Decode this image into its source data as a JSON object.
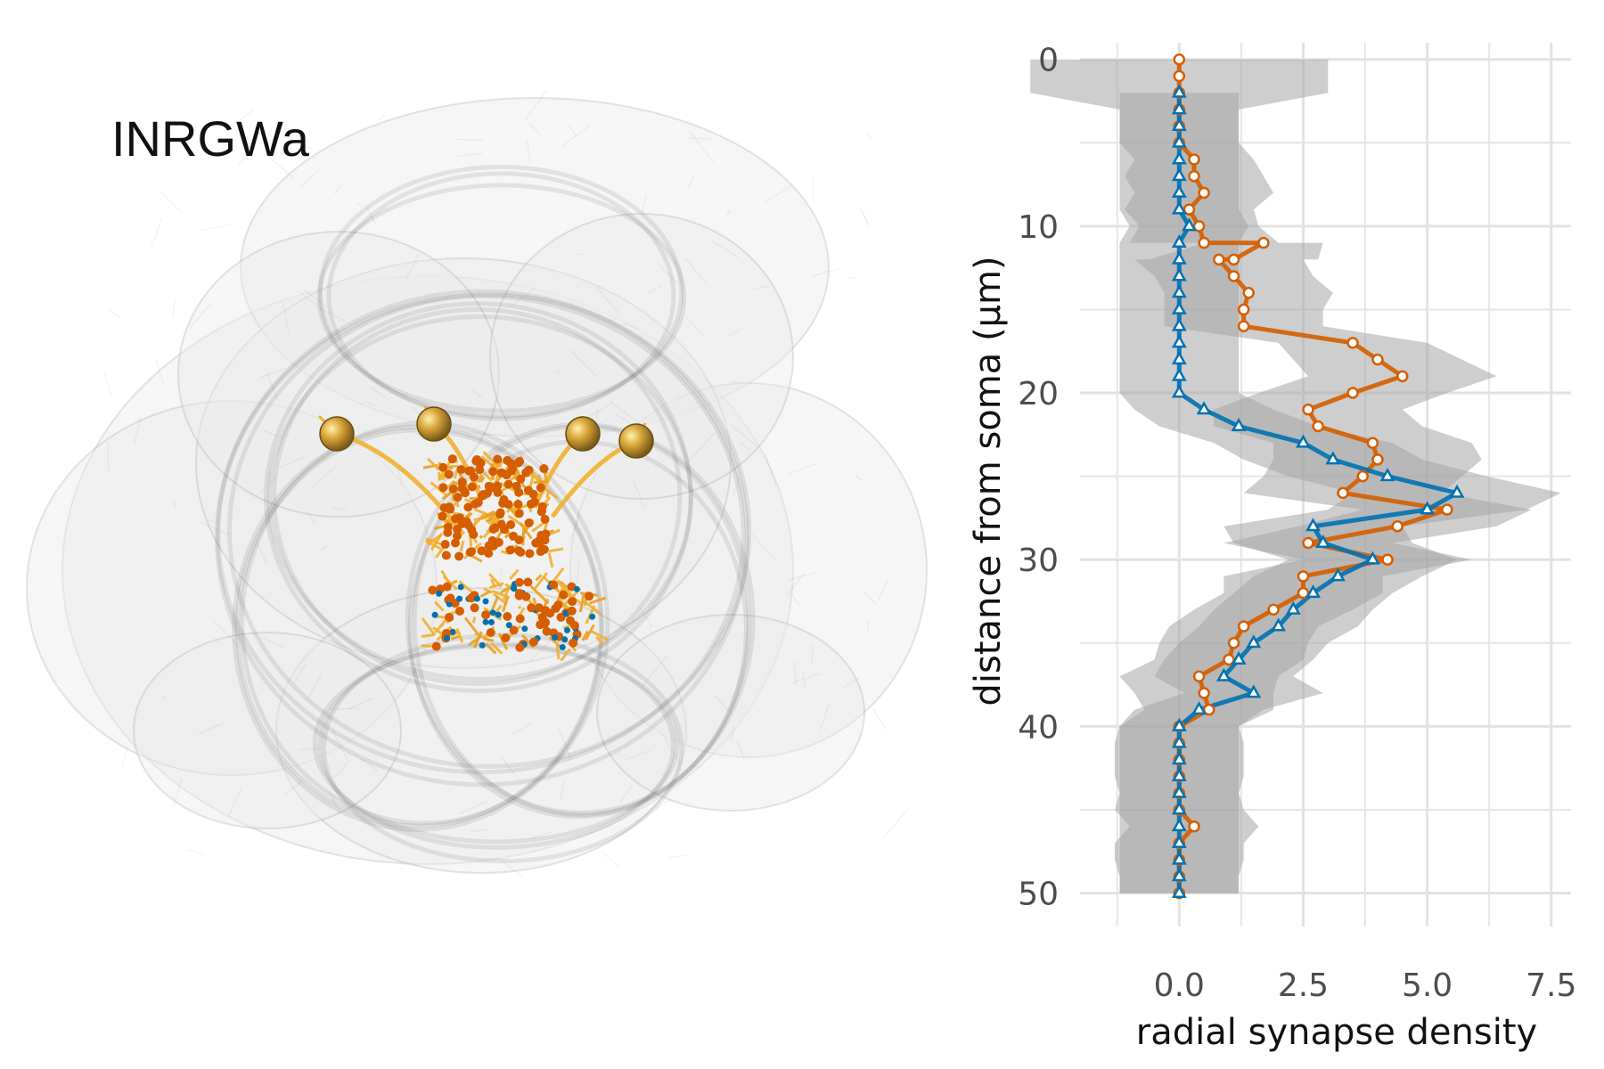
{
  "figure": {
    "panel_label": "INRGWa"
  },
  "colors": {
    "orange_series": "#D55E00",
    "blue_series": "#0072B2",
    "soma": "#C9962E",
    "neurite": "#F0B030",
    "mesh": "#9a9a9a",
    "band": "#a6a6a6",
    "grid": "#e6e6e6"
  },
  "chart_data": {
    "type": "line",
    "orientation": "vertical",
    "xlabel": "radial synapse density",
    "ylabel": "distance from soma (μm)",
    "xlim": [
      -2.0,
      7.9
    ],
    "ylim": [
      0,
      52
    ],
    "y_reversed": true,
    "grid": true,
    "legend": "none",
    "x_ticks": [
      0.0,
      2.5,
      5.0,
      7.5
    ],
    "x_tick_labels": [
      "0.0",
      "2.5",
      "5.0",
      "7.5"
    ],
    "y_ticks": [
      0,
      10,
      20,
      30,
      40,
      50
    ],
    "y_tick_labels": [
      "0",
      "10",
      "20",
      "30",
      "40",
      "50"
    ],
    "series": [
      {
        "marker": "circle",
        "color": "#D55E00",
        "points": [
          [
            0,
            0
          ],
          [
            0,
            1
          ],
          [
            0,
            2
          ],
          [
            0,
            3
          ],
          [
            0,
            4
          ],
          [
            0,
            5
          ],
          [
            0.3,
            6
          ],
          [
            0.3,
            7
          ],
          [
            0.5,
            8
          ],
          [
            0.2,
            9
          ],
          [
            0.4,
            10
          ],
          [
            0.5,
            11
          ],
          [
            1.7,
            11
          ],
          [
            1.1,
            12
          ],
          [
            0.8,
            12
          ],
          [
            1.1,
            13
          ],
          [
            1.4,
            14
          ],
          [
            1.3,
            15
          ],
          [
            1.3,
            16
          ],
          [
            3.5,
            17
          ],
          [
            4.0,
            18
          ],
          [
            4.5,
            19
          ],
          [
            3.5,
            20
          ],
          [
            2.6,
            21
          ],
          [
            2.8,
            22
          ],
          [
            3.9,
            23
          ],
          [
            4.0,
            24
          ],
          [
            3.7,
            25
          ],
          [
            3.3,
            26
          ],
          [
            5.4,
            27
          ],
          [
            4.4,
            28
          ],
          [
            2.6,
            29
          ],
          [
            4.2,
            30
          ],
          [
            2.5,
            31
          ],
          [
            2.5,
            32
          ],
          [
            1.9,
            33
          ],
          [
            1.3,
            34
          ],
          [
            1.1,
            35
          ],
          [
            1.0,
            36
          ],
          [
            0.4,
            37
          ],
          [
            0.5,
            38
          ],
          [
            0.6,
            39
          ],
          [
            0,
            40
          ],
          [
            0,
            41
          ],
          [
            0,
            42
          ],
          [
            0,
            43
          ],
          [
            0,
            44
          ],
          [
            0,
            45
          ],
          [
            0.3,
            46
          ],
          [
            0,
            47
          ],
          [
            0,
            48
          ],
          [
            0,
            49
          ],
          [
            0,
            50
          ]
        ],
        "band_halfwidth": [
          3.0,
          3.0,
          3.0,
          1.2,
          1.2,
          1.2,
          1.2,
          1.4,
          1.4,
          1.3,
          1.2,
          1.5,
          1.2,
          1.7,
          1.7,
          1.6,
          1.7,
          1.6,
          1.6,
          1.5,
          1.7,
          1.9,
          1.9,
          1.9,
          2.1,
          2.0,
          2.1,
          2.0,
          2.0,
          1.7,
          2.0,
          1.7,
          1.7,
          1.6,
          1.6,
          1.6,
          1.5,
          1.5,
          1.5,
          1.6,
          1.4,
          1.3,
          1.2,
          1.3,
          1.3,
          1.3,
          1.2,
          1.3,
          1.3,
          1.3,
          1.3
        ]
      },
      {
        "marker": "triangle",
        "color": "#0072B2",
        "points": [
          [
            0,
            2
          ],
          [
            0,
            3
          ],
          [
            0,
            4
          ],
          [
            0,
            5
          ],
          [
            0,
            6
          ],
          [
            0,
            7
          ],
          [
            0,
            8
          ],
          [
            0,
            9
          ],
          [
            0.2,
            10
          ],
          [
            0,
            11
          ],
          [
            0,
            12
          ],
          [
            0,
            13
          ],
          [
            0,
            14
          ],
          [
            0,
            15
          ],
          [
            0,
            16
          ],
          [
            0,
            17
          ],
          [
            0,
            18
          ],
          [
            0,
            19
          ],
          [
            0,
            20
          ],
          [
            0.5,
            21
          ],
          [
            1.2,
            22
          ],
          [
            2.5,
            23
          ],
          [
            3.1,
            24
          ],
          [
            4.2,
            25
          ],
          [
            5.6,
            26
          ],
          [
            5.0,
            27
          ],
          [
            2.7,
            28
          ],
          [
            2.9,
            29
          ],
          [
            3.9,
            30
          ],
          [
            3.2,
            31
          ],
          [
            2.7,
            32
          ],
          [
            2.3,
            33
          ],
          [
            2.0,
            34
          ],
          [
            1.5,
            35
          ],
          [
            1.2,
            36
          ],
          [
            0.9,
            37
          ],
          [
            1.5,
            38
          ],
          [
            0.4,
            39
          ],
          [
            0,
            40
          ],
          [
            0,
            41
          ],
          [
            0,
            42
          ],
          [
            0,
            43
          ],
          [
            0,
            44
          ],
          [
            0,
            45
          ],
          [
            0,
            46
          ],
          [
            0,
            47
          ],
          [
            0,
            48
          ],
          [
            0,
            49
          ],
          [
            0,
            50
          ]
        ],
        "band_halfwidth": [
          1.2,
          1.2,
          1.2,
          1.2,
          1.2,
          1.2,
          1.2,
          1.2,
          1.2,
          1.2,
          1.2,
          1.2,
          1.2,
          1.2,
          1.2,
          1.2,
          1.2,
          1.2,
          1.2,
          1.4,
          1.6,
          1.8,
          1.8,
          2.0,
          2.1,
          2.0,
          1.8,
          1.8,
          1.7,
          1.7,
          1.6,
          1.6,
          1.6,
          1.5,
          1.5,
          1.4,
          1.4,
          1.3,
          1.2,
          1.2,
          1.2,
          1.2,
          1.2,
          1.2,
          1.2,
          1.2,
          1.2,
          1.2,
          1.2
        ]
      }
    ]
  }
}
